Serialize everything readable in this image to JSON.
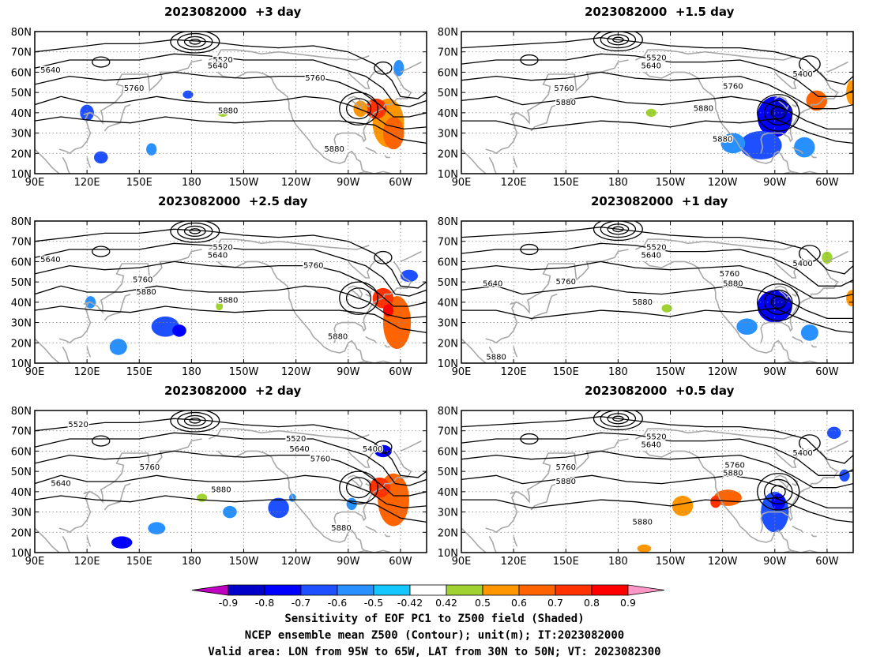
{
  "panels": [
    {
      "title": "2023082000  +3 day"
    },
    {
      "title": "2023082000  +1.5 day"
    },
    {
      "title": "2023082000  +2.5 day"
    },
    {
      "title": "2023082000  +1 day"
    },
    {
      "title": "2023082000  +2 day"
    },
    {
      "title": "2023082000  +0.5 day"
    }
  ],
  "map_axes": {
    "lat_ticks": [
      "80N",
      "70N",
      "60N",
      "50N",
      "40N",
      "30N",
      "20N",
      "10N"
    ],
    "lat_values": [
      80,
      70,
      60,
      50,
      40,
      30,
      20,
      10
    ],
    "lon_ticks": [
      "90E",
      "120E",
      "150E",
      "180",
      "150W",
      "120W",
      "90W",
      "60W"
    ],
    "lon_values": [
      90,
      120,
      150,
      180,
      210,
      240,
      270,
      300
    ],
    "lon_range": [
      90,
      315
    ],
    "lat_range": [
      10,
      80
    ]
  },
  "contour_labels": {
    "p0": [
      "5640",
      "5520",
      "5640",
      "5760",
      "5760",
      "5880",
      "5880"
    ],
    "p1": [
      "5520",
      "5640",
      "5400",
      "5760",
      "5760",
      "5880",
      "5880",
      "5880"
    ],
    "p2": [
      "5640",
      "5520",
      "5640",
      "5760",
      "5760",
      "5880",
      "5880",
      "5880"
    ],
    "p3": [
      "5520",
      "5640",
      "5400",
      "5640",
      "5760",
      "5760",
      "5880",
      "5880",
      "5880"
    ],
    "p4": [
      "5520",
      "5520",
      "5640",
      "5400",
      "5640",
      "5760",
      "5760",
      "5880",
      "5880"
    ],
    "p5": [
      "5520",
      "5640",
      "5400",
      "5760",
      "5760",
      "5880",
      "5880",
      "5880"
    ]
  },
  "colorbar": {
    "labels": [
      "-0.9",
      "-0.8",
      "-0.7",
      "-0.6",
      "-0.5",
      "-0.42",
      "0.42",
      "0.5",
      "0.6",
      "0.7",
      "0.8",
      "0.9"
    ],
    "colors": [
      "#c000c0",
      "#0000c8",
      "#0000ff",
      "#1e50ff",
      "#2890ff",
      "#14c8ff",
      "#ffffff",
      "#a0d232",
      "#ff9600",
      "#ff6400",
      "#ff3200",
      "#ff0000",
      "#ff96c8"
    ]
  },
  "caption": {
    "line1": "Sensitivity of EOF PC1 to Z500 field (Shaded)",
    "line2": "NCEP ensemble mean Z500 (Contour); unit(m); IT:2023082000",
    "line3": "Valid area: LON from 95W to 65W, LAT from 30N to 50N; VT: 2023082300"
  }
}
